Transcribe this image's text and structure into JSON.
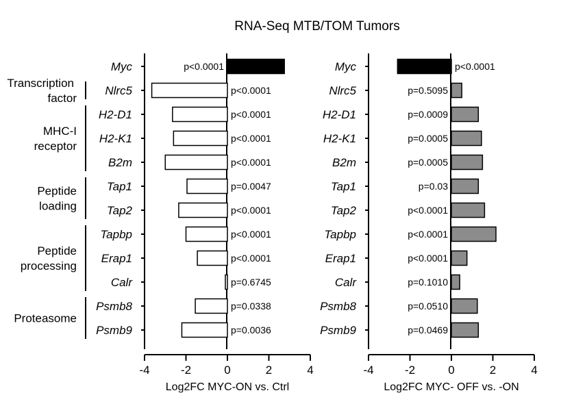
{
  "title": "RNA-Seq MTB/TOM Tumors",
  "genes": [
    "Myc",
    "Nlrc5",
    "H2-D1",
    "H2-K1",
    "B2m",
    "Tap1",
    "Tap2",
    "Tapbp",
    "Erap1",
    "Calr",
    "Psmb8",
    "Psmb9"
  ],
  "groups": [
    {
      "label": [
        "Transcription",
        "factor"
      ],
      "genes": [
        "Nlrc5"
      ]
    },
    {
      "label": [
        "MHC-I",
        "receptor"
      ],
      "genes": [
        "H2-D1",
        "H2-K1",
        "B2m"
      ]
    },
    {
      "label": [
        "Peptide",
        "loading"
      ],
      "genes": [
        "Tap1",
        "Tap2"
      ]
    },
    {
      "label": [
        "Peptide",
        "processing"
      ],
      "genes": [
        "Tapbp",
        "Erap1",
        "Calr"
      ]
    },
    {
      "label": [
        "Proteasome"
      ],
      "genes": [
        "Psmb8",
        "Psmb9"
      ]
    }
  ],
  "chart_data": [
    {
      "type": "bar",
      "orientation": "horizontal",
      "xlabel": "Log2FC MYC-ON vs. Ctrl",
      "xlim": [
        -4,
        4
      ],
      "xticks": [
        -4,
        -2,
        0,
        2,
        4
      ],
      "categories": [
        "Myc",
        "Nlrc5",
        "H2-D1",
        "H2-K1",
        "B2m",
        "Tap1",
        "Tap2",
        "Tapbp",
        "Erap1",
        "Calr",
        "Psmb8",
        "Psmb9"
      ],
      "values": [
        2.75,
        -3.65,
        -2.65,
        -2.6,
        -3.0,
        -1.95,
        -2.35,
        -2.0,
        -1.45,
        -0.1,
        -1.55,
        -2.2
      ],
      "pvalues": [
        "p<0.0001",
        "p<0.0001",
        "p<0.0001",
        "p<0.0001",
        "p<0.0001",
        "p=0.0047",
        "p<0.0001",
        "p<0.0001",
        "p<0.0001",
        "p=0.6745",
        "p=0.0338",
        "p=0.0036"
      ],
      "bar_colors": [
        "#000000",
        "#ffffff",
        "#ffffff",
        "#ffffff",
        "#ffffff",
        "#ffffff",
        "#ffffff",
        "#ffffff",
        "#ffffff",
        "#ffffff",
        "#ffffff",
        "#ffffff"
      ]
    },
    {
      "type": "bar",
      "orientation": "horizontal",
      "xlabel": "Log2FC MYC- OFF vs. -ON",
      "xlim": [
        -4,
        4
      ],
      "xticks": [
        -4,
        -2,
        0,
        2,
        4
      ],
      "categories": [
        "Myc",
        "Nlrc5",
        "H2-D1",
        "H2-K1",
        "B2m",
        "Tap1",
        "Tap2",
        "Tapbp",
        "Erap1",
        "Calr",
        "Psmb8",
        "Psmb9"
      ],
      "values": [
        -2.6,
        0.5,
        1.3,
        1.45,
        1.5,
        1.3,
        1.6,
        2.15,
        0.75,
        0.4,
        1.25,
        1.3
      ],
      "pvalues": [
        "p<0.0001",
        "p=0.5095",
        "p=0.0009",
        "p=0.0005",
        "p=0.0005",
        "p=0.03",
        "p<0.0001",
        "p<0.0001",
        "p<0.0001",
        "p=0.1010",
        "p=0.0510",
        "p=0.0469"
      ],
      "bar_colors": [
        "#000000",
        "#8c8c8c",
        "#8c8c8c",
        "#8c8c8c",
        "#8c8c8c",
        "#8c8c8c",
        "#8c8c8c",
        "#8c8c8c",
        "#8c8c8c",
        "#8c8c8c",
        "#8c8c8c",
        "#8c8c8c"
      ]
    }
  ]
}
